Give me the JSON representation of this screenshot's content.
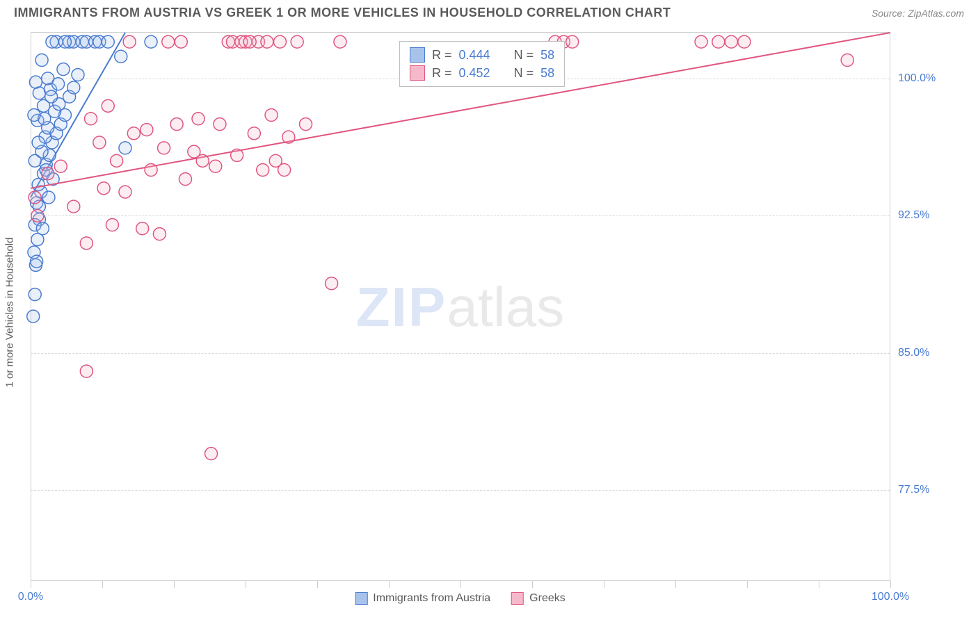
{
  "header": {
    "title": "IMMIGRANTS FROM AUSTRIA VS GREEK 1 OR MORE VEHICLES IN HOUSEHOLD CORRELATION CHART",
    "source": "Source: ZipAtlas.com"
  },
  "chart": {
    "type": "scatter",
    "background_color": "#ffffff",
    "grid_color": "#d8d8d8",
    "border_color": "#cccccc",
    "xlabel": "",
    "ylabel": "1 or more Vehicles in Household",
    "label_color": "#5a5a5a",
    "label_fontsize": 15,
    "tick_label_color": "#4a7bd1",
    "tick_label_fontsize": 16,
    "xlim": [
      0,
      100
    ],
    "ylim": [
      72.5,
      102.5
    ],
    "x_ticks": [
      0,
      8.33,
      16.67,
      25,
      33.33,
      41.67,
      50,
      58.33,
      66.67,
      75,
      83.33,
      91.67,
      100
    ],
    "x_tick_labels": {
      "0": "0.0%",
      "100": "100.0%"
    },
    "y_ticks": [
      77.5,
      85.0,
      92.5,
      100.0
    ],
    "y_tick_labels": [
      "77.5%",
      "85.0%",
      "92.5%",
      "100.0%"
    ],
    "marker_radius": 9,
    "marker_stroke_width": 1.5,
    "marker_fill_opacity": 0.25,
    "line_width": 2,
    "series": [
      {
        "name": "Immigrants from Austria",
        "color": "#4a7bd1",
        "fill": "#a8c3eb",
        "R": "0.444",
        "N": "58",
        "trend": {
          "x1": 0,
          "y1": 93.5,
          "x2": 11,
          "y2": 102.5
        },
        "points": [
          [
            0.3,
            87.0
          ],
          [
            0.5,
            88.2
          ],
          [
            0.6,
            89.8
          ],
          [
            0.4,
            90.5
          ],
          [
            0.8,
            91.2
          ],
          [
            1.0,
            92.3
          ],
          [
            0.7,
            93.2
          ],
          [
            1.2,
            93.8
          ],
          [
            0.9,
            94.2
          ],
          [
            1.5,
            94.8
          ],
          [
            1.8,
            95.3
          ],
          [
            0.5,
            95.5
          ],
          [
            2.2,
            95.8
          ],
          [
            1.3,
            96.0
          ],
          [
            2.5,
            96.5
          ],
          [
            1.7,
            96.8
          ],
          [
            3.0,
            97.0
          ],
          [
            2.0,
            97.3
          ],
          [
            3.5,
            97.5
          ],
          [
            0.8,
            97.7
          ],
          [
            4.0,
            98.0
          ],
          [
            2.8,
            98.2
          ],
          [
            1.5,
            98.5
          ],
          [
            3.3,
            98.6
          ],
          [
            4.5,
            99.0
          ],
          [
            1.0,
            99.2
          ],
          [
            2.3,
            99.4
          ],
          [
            5.0,
            99.5
          ],
          [
            5.5,
            100.2
          ],
          [
            3.8,
            100.5
          ],
          [
            4.5,
            102.0
          ],
          [
            5.0,
            102.0
          ],
          [
            3.0,
            102.0
          ],
          [
            2.5,
            102.0
          ],
          [
            6.0,
            102.0
          ],
          [
            6.5,
            102.0
          ],
          [
            7.5,
            102.0
          ],
          [
            8.0,
            102.0
          ],
          [
            4.0,
            102.0
          ],
          [
            9.0,
            102.0
          ],
          [
            10.5,
            101.2
          ],
          [
            11.0,
            96.2
          ],
          [
            14.0,
            102.0
          ],
          [
            1.3,
            101.0
          ],
          [
            2.0,
            100.0
          ],
          [
            0.6,
            99.8
          ],
          [
            3.2,
            99.7
          ],
          [
            1.8,
            95.0
          ],
          [
            2.6,
            94.5
          ],
          [
            1.0,
            93.0
          ],
          [
            0.5,
            92.0
          ],
          [
            0.7,
            90.0
          ],
          [
            1.4,
            91.8
          ],
          [
            2.1,
            93.5
          ],
          [
            0.9,
            96.5
          ],
          [
            1.6,
            97.8
          ],
          [
            2.4,
            99.0
          ],
          [
            0.4,
            98.0
          ]
        ]
      },
      {
        "name": "Greeks",
        "color": "#e0567f",
        "fill": "#f5b9cb",
        "R": "0.452",
        "N": "58",
        "trend": {
          "x1": 0,
          "y1": 94.0,
          "x2": 100,
          "y2": 102.5
        },
        "points": [
          [
            0.5,
            93.5
          ],
          [
            2.0,
            94.8
          ],
          [
            3.5,
            95.2
          ],
          [
            5.0,
            93.0
          ],
          [
            6.5,
            91.0
          ],
          [
            8.0,
            96.5
          ],
          [
            9.5,
            92.0
          ],
          [
            10.0,
            95.5
          ],
          [
            11.0,
            93.8
          ],
          [
            12.0,
            97.0
          ],
          [
            13.0,
            91.8
          ],
          [
            14.0,
            95.0
          ],
          [
            15.5,
            96.2
          ],
          [
            16.0,
            102.0
          ],
          [
            17.0,
            97.5
          ],
          [
            18.0,
            94.5
          ],
          [
            19.0,
            96.0
          ],
          [
            20.0,
            95.5
          ],
          [
            21.0,
            79.5
          ],
          [
            22.0,
            97.5
          ],
          [
            23.0,
            102.0
          ],
          [
            24.0,
            95.8
          ],
          [
            25.0,
            102.0
          ],
          [
            26.0,
            97.0
          ],
          [
            27.0,
            95.0
          ],
          [
            28.0,
            98.0
          ],
          [
            29.0,
            102.0
          ],
          [
            30.0,
            96.8
          ],
          [
            31.0,
            102.0
          ],
          [
            32.0,
            97.5
          ],
          [
            35.0,
            88.8
          ],
          [
            36.0,
            102.0
          ],
          [
            6.5,
            84.0
          ],
          [
            7.0,
            97.8
          ],
          [
            8.5,
            94.0
          ],
          [
            9.0,
            98.5
          ],
          [
            11.5,
            102.0
          ],
          [
            13.5,
            97.2
          ],
          [
            15.0,
            91.5
          ],
          [
            17.5,
            102.0
          ],
          [
            19.5,
            97.8
          ],
          [
            21.5,
            95.2
          ],
          [
            23.5,
            102.0
          ],
          [
            26.5,
            102.0
          ],
          [
            28.5,
            95.5
          ],
          [
            24.5,
            102.0
          ],
          [
            25.5,
            102.0
          ],
          [
            27.5,
            102.0
          ],
          [
            29.5,
            95.0
          ],
          [
            61.0,
            102.0
          ],
          [
            62.0,
            102.0
          ],
          [
            63.0,
            102.0
          ],
          [
            78.0,
            102.0
          ],
          [
            80.0,
            102.0
          ],
          [
            81.5,
            102.0
          ],
          [
            83.0,
            102.0
          ],
          [
            95.0,
            101.0
          ],
          [
            0.8,
            92.5
          ]
        ]
      }
    ],
    "watermark": {
      "part1": "ZIP",
      "part2": "atlas"
    }
  },
  "stats_box": {
    "rows": [
      {
        "color": "#4a7bd1",
        "fill": "#a8c3eb",
        "R_label": "R =",
        "R": "0.444",
        "N_label": "N =",
        "N": "58"
      },
      {
        "color": "#e0567f",
        "fill": "#f5b9cb",
        "R_label": "R =",
        "R": "0.452",
        "N_label": "N =",
        "N": "58"
      }
    ]
  },
  "legend": {
    "items": [
      {
        "label": "Immigrants from Austria",
        "color": "#4a7bd1",
        "fill": "#a8c3eb"
      },
      {
        "label": "Greeks",
        "color": "#e0567f",
        "fill": "#f5b9cb"
      }
    ]
  }
}
